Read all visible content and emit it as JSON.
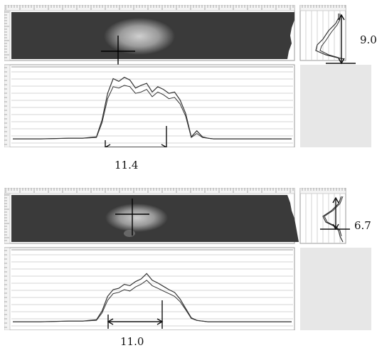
{
  "panels": [
    {
      "id": "top",
      "horizontal_width_label": "11.4",
      "vertical_height_label": "9.0",
      "horizontal_profile": {
        "x": [
          0.0,
          0.1,
          0.2,
          0.25,
          0.3,
          0.32,
          0.34,
          0.36,
          0.38,
          0.4,
          0.42,
          0.44,
          0.46,
          0.48,
          0.5,
          0.52,
          0.54,
          0.56,
          0.58,
          0.6,
          0.62,
          0.64,
          0.66,
          0.68,
          0.7,
          0.72,
          0.74,
          0.76,
          0.78,
          0.8,
          0.85,
          0.9,
          1.0
        ],
        "upper": [
          0.02,
          0.02,
          0.03,
          0.03,
          0.05,
          0.3,
          0.7,
          0.92,
          0.88,
          0.94,
          0.9,
          0.78,
          0.82,
          0.85,
          0.72,
          0.8,
          0.76,
          0.7,
          0.72,
          0.6,
          0.4,
          0.05,
          0.14,
          0.05,
          0.03,
          0.02,
          0.02,
          0.02,
          0.02,
          0.02,
          0.02,
          0.02,
          0.02
        ],
        "lower": [
          0.02,
          0.02,
          0.03,
          0.03,
          0.04,
          0.26,
          0.62,
          0.8,
          0.78,
          0.82,
          0.8,
          0.7,
          0.72,
          0.76,
          0.65,
          0.72,
          0.68,
          0.62,
          0.64,
          0.54,
          0.36,
          0.04,
          0.1,
          0.04,
          0.03,
          0.02,
          0.02,
          0.02,
          0.02,
          0.02,
          0.02,
          0.02,
          0.02
        ]
      }
    },
    {
      "id": "bottom",
      "horizontal_width_label": "11.0",
      "vertical_height_label": "6.7",
      "horizontal_profile": {
        "x": [
          0.0,
          0.1,
          0.2,
          0.25,
          0.3,
          0.32,
          0.34,
          0.36,
          0.38,
          0.4,
          0.42,
          0.44,
          0.46,
          0.48,
          0.5,
          0.52,
          0.54,
          0.56,
          0.58,
          0.6,
          0.62,
          0.64,
          0.66,
          0.68,
          0.7,
          0.72,
          0.74,
          0.76,
          0.78,
          0.8,
          0.85,
          0.9,
          1.0
        ],
        "upper": [
          0.02,
          0.02,
          0.03,
          0.03,
          0.05,
          0.18,
          0.4,
          0.5,
          0.52,
          0.58,
          0.56,
          0.62,
          0.66,
          0.74,
          0.64,
          0.6,
          0.55,
          0.5,
          0.46,
          0.36,
          0.22,
          0.08,
          0.04,
          0.03,
          0.02,
          0.02,
          0.02,
          0.02,
          0.02,
          0.02,
          0.02,
          0.02,
          0.02
        ],
        "lower": [
          0.02,
          0.02,
          0.03,
          0.03,
          0.04,
          0.15,
          0.34,
          0.44,
          0.46,
          0.5,
          0.48,
          0.54,
          0.58,
          0.64,
          0.56,
          0.52,
          0.48,
          0.44,
          0.4,
          0.32,
          0.2,
          0.07,
          0.04,
          0.03,
          0.02,
          0.02,
          0.02,
          0.02,
          0.02,
          0.02,
          0.02,
          0.02,
          0.02
        ]
      }
    }
  ],
  "colors": {
    "beam_background": "#3a3a3a",
    "profile_bg": "#ffffff",
    "grid": "#c9c9c9",
    "ruler": "#f3f3f3",
    "trace": "#333333",
    "empty_cell": "#e7e7e7",
    "axis_marker": "#111111"
  }
}
